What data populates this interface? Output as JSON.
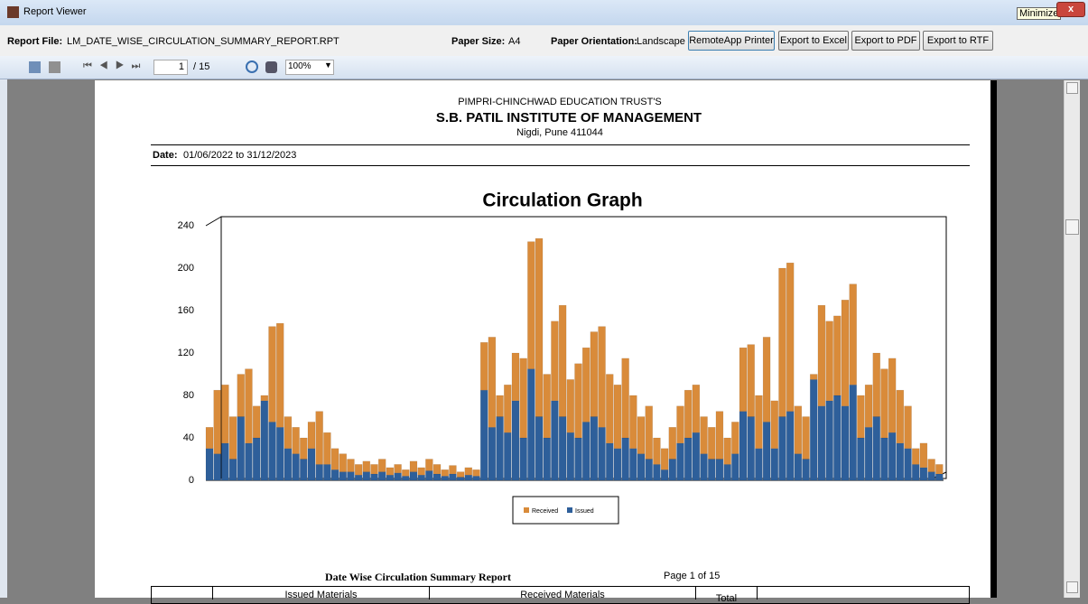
{
  "window": {
    "title": "Report Viewer",
    "tooltip": "Minimize"
  },
  "info": {
    "file_label": "Report File:",
    "file": "LM_DATE_WISE_CIRCULATION_SUMMARY_REPORT.RPT",
    "size_label": "Paper Size:",
    "size": "A4",
    "orient_label": "Paper Orientation:",
    "orient": "Landscape"
  },
  "buttons": [
    "RemoteApp Printer",
    "Export to Excel",
    "Export to PDF",
    "Export to RTF"
  ],
  "toolbar": {
    "page": "1",
    "total": "/ 15",
    "zoom": "100%"
  },
  "report": {
    "trust": "PIMPRI-CHINCHWAD EDUCATION TRUST'S",
    "institute": "S.B. PATIL INSTITUTE OF MANAGEMENT",
    "address": "Nigdi, Pune 411044",
    "date_label": "Date:",
    "date": "01/06/2022 to 31/12/2023"
  },
  "chart_data": {
    "type": "bar",
    "stacked": true,
    "title": "Circulation Graph",
    "ylim": [
      0,
      240
    ],
    "yticks": [
      0,
      40,
      80,
      120,
      160,
      200,
      240
    ],
    "series": [
      {
        "name": "Received",
        "color": "#d98b3a",
        "values": [
          20,
          60,
          55,
          40,
          40,
          70,
          30,
          5,
          90,
          98,
          30,
          25,
          20,
          25,
          50,
          30,
          20,
          17,
          12,
          10,
          10,
          9,
          12,
          7,
          8,
          6,
          10,
          7,
          11,
          9,
          6,
          8,
          5,
          7,
          6,
          45,
          85,
          20,
          45,
          45,
          75,
          120,
          168,
          60,
          75,
          105,
          50,
          70,
          70,
          80,
          95,
          65,
          60,
          75,
          50,
          35,
          50,
          25,
          20,
          30,
          35,
          45,
          45,
          35,
          30,
          45,
          25,
          30,
          60,
          68,
          50,
          80,
          45,
          140,
          140,
          45,
          40,
          5,
          95,
          75,
          75,
          100,
          95,
          40,
          40,
          60,
          65,
          70,
          50,
          40,
          15,
          23,
          12,
          9
        ]
      },
      {
        "name": "Issued",
        "color": "#2e5f9a",
        "values": [
          30,
          25,
          35,
          20,
          60,
          35,
          40,
          75,
          55,
          50,
          30,
          25,
          20,
          30,
          15,
          15,
          10,
          8,
          8,
          5,
          8,
          6,
          8,
          5,
          7,
          4,
          8,
          5,
          9,
          6,
          4,
          6,
          3,
          5,
          4,
          85,
          50,
          60,
          45,
          75,
          40,
          105,
          60,
          40,
          75,
          60,
          45,
          40,
          55,
          60,
          50,
          35,
          30,
          40,
          30,
          25,
          20,
          15,
          10,
          20,
          35,
          40,
          45,
          25,
          20,
          20,
          15,
          25,
          65,
          60,
          30,
          55,
          30,
          60,
          65,
          25,
          20,
          95,
          70,
          75,
          80,
          70,
          90,
          40,
          50,
          60,
          40,
          45,
          35,
          30,
          15,
          12,
          8,
          6
        ]
      }
    ]
  },
  "footer": {
    "title": "Date Wise Circulation Summary Report",
    "page": "Page 1 of 15"
  },
  "table": {
    "headers": [
      "Issued Materials",
      "Received Materials",
      "Total"
    ]
  }
}
